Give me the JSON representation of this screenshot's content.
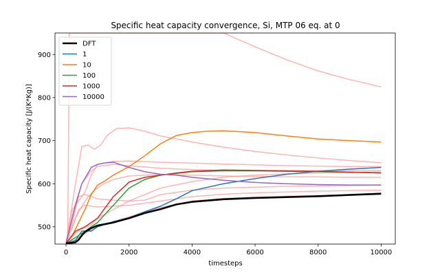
{
  "chart_data": {
    "type": "line",
    "title": "Specific heat capacity convergence, Si, MTP 06 eq. at 0",
    "xlabel": "timesteps",
    "ylabel": "Specific heat capacity [J/(K*Kg)]",
    "xlim": [
      -350,
      10450
    ],
    "ylim": [
      460,
      950
    ],
    "xticks": [
      0,
      2000,
      4000,
      6000,
      8000,
      10000
    ],
    "yticks": [
      500,
      600,
      700,
      800,
      900
    ],
    "grid": false,
    "legend_position": "top-left",
    "legend": [
      "DFT",
      "1",
      "10",
      "100",
      "1000",
      "10000"
    ],
    "series": [
      {
        "name": "DFT",
        "color": "#000000",
        "width": 2.6,
        "x": [
          0,
          200,
          300,
          400,
          500,
          600,
          800,
          1000,
          1500,
          2000,
          2500,
          3000,
          3500,
          4000,
          5000,
          6000,
          7000,
          8000,
          9000,
          10000
        ],
        "y": [
          462,
          463,
          464,
          470,
          480,
          488,
          497,
          503,
          510,
          520,
          532,
          541,
          552,
          558,
          564,
          567,
          569,
          571,
          574,
          577
        ]
      },
      {
        "name": "1",
        "color": "#1f77b4",
        "width": 1.5,
        "x": [
          0,
          300,
          500,
          700,
          800,
          1000,
          1500,
          2000,
          2500,
          3000,
          3500,
          4000,
          5000,
          6000,
          7000,
          8000,
          9000,
          10000
        ],
        "y": [
          462,
          468,
          490,
          491,
          490,
          500,
          512,
          521,
          535,
          548,
          565,
          584,
          600,
          612,
          622,
          629,
          634,
          638
        ]
      },
      {
        "name": "10",
        "color": "#ff7f0e",
        "width": 1.5,
        "x": [
          0,
          200,
          400,
          600,
          800,
          1000,
          1200,
          1500,
          2000,
          2500,
          3000,
          3500,
          4000,
          4500,
          5000,
          6000,
          7000,
          8000,
          9000,
          10000
        ],
        "y": [
          462,
          480,
          510,
          540,
          575,
          597,
          605,
          620,
          640,
          665,
          693,
          712,
          719,
          722,
          723,
          719,
          711,
          704,
          700,
          697
        ]
      },
      {
        "name": "100",
        "color": "#2ca02c",
        "width": 1.5,
        "x": [
          0,
          300,
          600,
          1000,
          1500,
          2000,
          2500,
          3000,
          4000,
          5000,
          6000,
          7000,
          8000,
          9000,
          10000
        ],
        "y": [
          462,
          475,
          490,
          510,
          550,
          590,
          610,
          620,
          628,
          630,
          630,
          629,
          628,
          627,
          625
        ]
      },
      {
        "name": "1000",
        "color": "#d62728",
        "width": 1.5,
        "x": [
          0,
          300,
          600,
          1000,
          1300,
          1500,
          1800,
          2000,
          2500,
          3000,
          3500,
          4000,
          5000,
          6000,
          7000,
          8000,
          9000,
          10000
        ],
        "y": [
          462,
          490,
          500,
          520,
          550,
          570,
          590,
          604,
          615,
          620,
          625,
          629,
          632,
          631,
          630,
          629,
          627,
          625
        ]
      },
      {
        "name": "10000",
        "color": "#9467bd",
        "width": 1.5,
        "x": [
          0,
          300,
          500,
          700,
          800,
          1000,
          1200,
          1500,
          2000,
          2500,
          3000,
          3500,
          4000,
          5000,
          6000,
          7000,
          8000,
          9000,
          10000
        ],
        "y": [
          462,
          550,
          600,
          625,
          638,
          645,
          648,
          650,
          638,
          628,
          622,
          620,
          615,
          608,
          603,
          600,
          598,
          597,
          597
        ]
      }
    ],
    "background_series": [
      {
        "color": "#ff9999",
        "opacity": 0.75,
        "x": [
          50,
          80,
          100,
          150,
          300,
          600,
          1000,
          2000,
          3000,
          4000,
          5000,
          6000,
          7000,
          8000,
          9000,
          10000
        ],
        "y": [
          462,
          700,
          950,
          950,
          950,
          950,
          950,
          950,
          950,
          950,
          950,
          918,
          888,
          862,
          842,
          825
        ]
      },
      {
        "color": "#ff9999",
        "opacity": 0.75,
        "x": [
          0,
          300,
          500,
          700,
          900,
          1100,
          1300,
          1600,
          2000,
          2500,
          3000,
          4000,
          5000,
          6000,
          7000,
          8000,
          9000,
          10000
        ],
        "y": [
          462,
          600,
          686,
          690,
          680,
          690,
          712,
          728,
          730,
          722,
          711,
          697,
          685,
          675,
          667,
          660,
          654,
          649
        ]
      },
      {
        "color": "#ff9999",
        "opacity": 0.75,
        "x": [
          0,
          200,
          400,
          600,
          800,
          1000,
          1500,
          2000,
          3000,
          4000,
          5000,
          6000,
          7000,
          8000,
          9000,
          10000
        ],
        "y": [
          462,
          540,
          560,
          580,
          620,
          645,
          652,
          653,
          650,
          648,
          646,
          644,
          642,
          641,
          640,
          640
        ]
      },
      {
        "color": "#ff9999",
        "opacity": 0.75,
        "x": [
          0,
          300,
          500,
          800,
          1000,
          1500,
          2000,
          3000,
          4000,
          5000,
          6000,
          7000,
          8000,
          9000,
          10000
        ],
        "y": [
          462,
          555,
          600,
          630,
          640,
          645,
          642,
          636,
          633,
          631,
          630,
          630,
          630,
          631,
          631
        ]
      },
      {
        "color": "#ff9999",
        "opacity": 0.75,
        "x": [
          0,
          300,
          500,
          700,
          900,
          1200,
          1500,
          2000,
          3000,
          4000,
          5000,
          6000,
          7000,
          8000,
          9000,
          10000
        ],
        "y": [
          462,
          520,
          548,
          570,
          585,
          600,
          610,
          618,
          622,
          620,
          618,
          617,
          616,
          616,
          615,
          615
        ]
      },
      {
        "color": "#ff9999",
        "opacity": 0.75,
        "x": [
          0,
          200,
          400,
          600,
          800,
          1000,
          1500,
          2000,
          2500,
          3000,
          4000,
          5000,
          6000,
          7000,
          8000,
          9000,
          10000
        ],
        "y": [
          462,
          510,
          570,
          575,
          570,
          565,
          562,
          560,
          562,
          575,
          585,
          590,
          592,
          594,
          595,
          596,
          597
        ]
      },
      {
        "color": "#ff9999",
        "opacity": 0.75,
        "x": [
          0,
          300,
          500,
          800,
          1000,
          1500,
          2000,
          2500,
          3000,
          4000,
          5000,
          6000,
          7000,
          8000,
          9000,
          10000
        ],
        "y": [
          462,
          485,
          495,
          505,
          520,
          540,
          560,
          575,
          590,
          605,
          615,
          620,
          623,
          625,
          626,
          628
        ]
      },
      {
        "color": "#ff9999",
        "opacity": 0.75,
        "x": [
          0,
          200,
          400,
          600,
          800,
          1000,
          1500,
          2000,
          3000,
          4000,
          5000,
          6000,
          7000,
          8000,
          9000,
          10000
        ],
        "y": [
          462,
          500,
          540,
          550,
          548,
          546,
          548,
          550,
          560,
          570,
          576,
          579,
          581,
          583,
          584,
          585
        ]
      },
      {
        "color": "#ff9999",
        "opacity": 0.75,
        "x": [
          0,
          300,
          600,
          1000,
          1500,
          2000,
          3000,
          4000,
          5000,
          6000,
          7000,
          8000,
          9000,
          10000
        ],
        "y": [
          462,
          470,
          485,
          500,
          512,
          523,
          545,
          560,
          566,
          569,
          571,
          573,
          574,
          575
        ]
      }
    ]
  }
}
